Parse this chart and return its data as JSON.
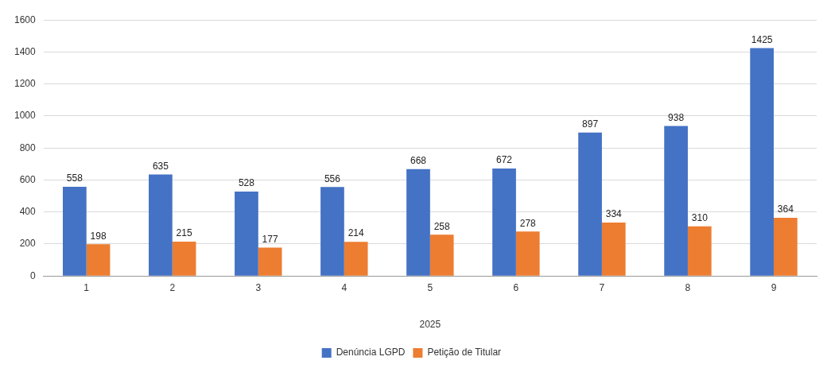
{
  "chart_data": {
    "type": "bar",
    "xlabel": "2025",
    "categories": [
      "1",
      "2",
      "3",
      "4",
      "5",
      "6",
      "7",
      "8",
      "9"
    ],
    "series": [
      {
        "name": "Denúncia LGPD",
        "color": "#4472c4",
        "values": [
          558,
          635,
          528,
          556,
          668,
          672,
          897,
          938,
          1425
        ]
      },
      {
        "name": "Petição de Titular",
        "color": "#ed7d31",
        "values": [
          198,
          215,
          177,
          214,
          258,
          278,
          334,
          310,
          364
        ]
      }
    ],
    "ylim": [
      0,
      1600
    ],
    "yticks": [
      0,
      200,
      400,
      600,
      800,
      1000,
      1200,
      1400,
      1600
    ],
    "grid": "y",
    "legend": "bottom",
    "data_labels": true
  }
}
